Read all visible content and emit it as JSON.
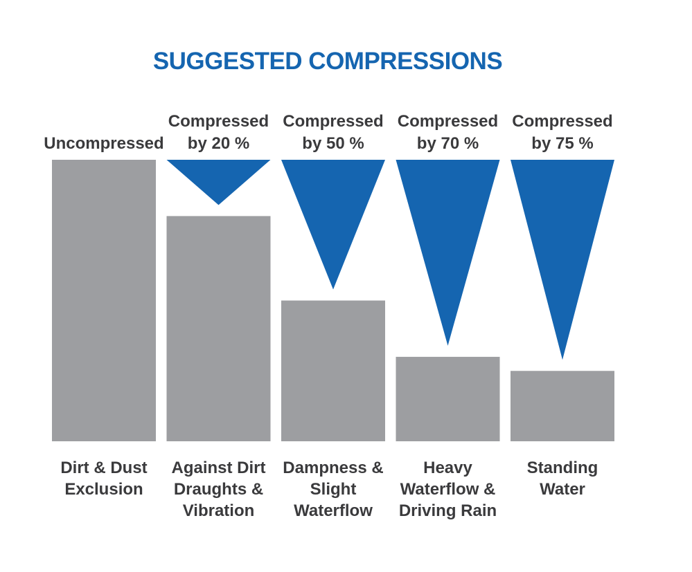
{
  "chart_data": {
    "type": "bar",
    "title": "SUGGESTED COMPRESSIONS",
    "colors": {
      "title": "#1565b0",
      "bar": "#9d9ea1",
      "wedge": "#1565b0",
      "text": "#3a3a3c"
    },
    "categories": [
      [
        "Dirt & Dust",
        "Exclusion"
      ],
      [
        "Against Dirt",
        "Draughts &",
        "Vibration"
      ],
      [
        "Dampness &",
        "Slight",
        "Waterflow"
      ],
      [
        "Heavy",
        "Waterflow &",
        "Driving Rain"
      ],
      [
        "Standing",
        "Water"
      ]
    ],
    "headers": [
      [
        "Uncompressed"
      ],
      [
        "Compressed",
        "by 20 %"
      ],
      [
        "Compressed",
        "by 50 %"
      ],
      [
        "Compressed",
        "by 70 %"
      ],
      [
        "Compressed",
        "by 75 %"
      ]
    ],
    "compression_percent": [
      0,
      20,
      50,
      70,
      75
    ],
    "ylim": [
      0,
      100
    ]
  }
}
